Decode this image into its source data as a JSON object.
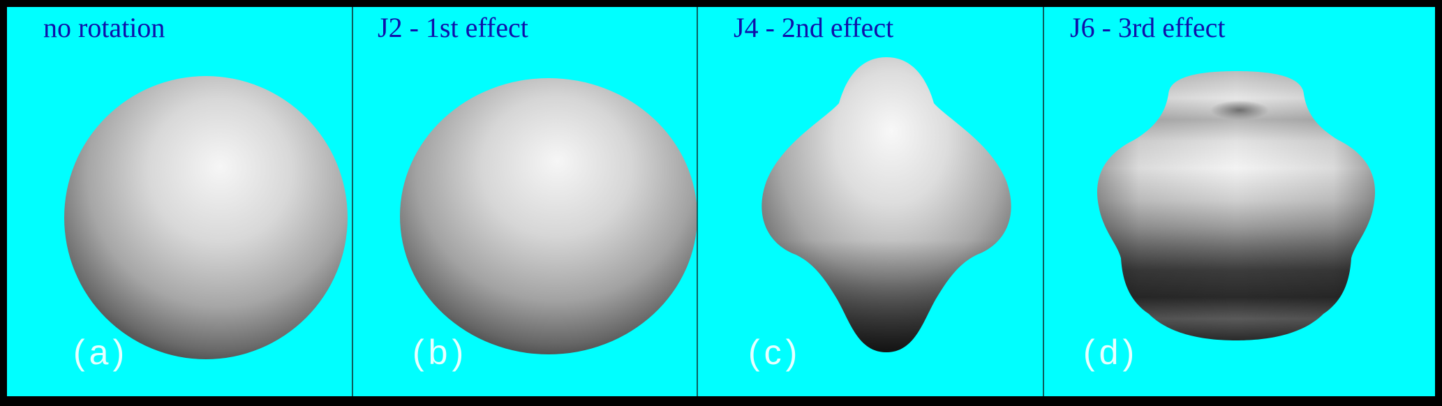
{
  "colors": {
    "background": "#00FFFF",
    "frame": "#000000",
    "title_text": "#1010AA",
    "sublabel_text": "#F4FFFF",
    "divider": "#0D5E5E"
  },
  "panels": [
    {
      "title": "no rotation",
      "sublabel": "(a)",
      "shape": "sphere"
    },
    {
      "title": "J2 - 1st effect",
      "sublabel": "(b)",
      "shape": "oblate-sphere"
    },
    {
      "title": "J4 - 2nd effect",
      "sublabel": "(c)",
      "shape": "j4-deformed-body"
    },
    {
      "title": "J6 - 3rd effect",
      "sublabel": "(d)",
      "shape": "j6-deformed-body"
    }
  ]
}
